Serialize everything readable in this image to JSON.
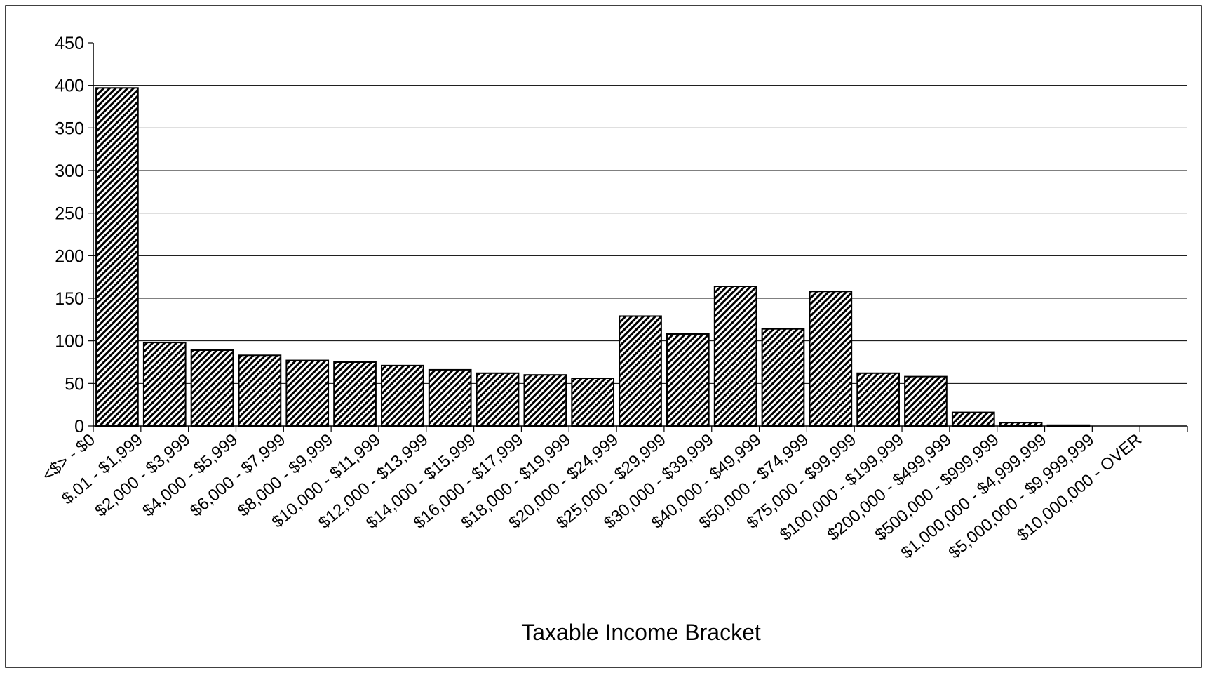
{
  "chart_data": {
    "type": "bar",
    "title": "",
    "xlabel": "Taxable Income Bracket",
    "ylabel": "",
    "ylim": [
      0,
      450
    ],
    "yticks": [
      0,
      50,
      100,
      150,
      200,
      250,
      300,
      350,
      400,
      450
    ],
    "grid": "horizontal",
    "legend": "none",
    "bar_fill": "diagonal-hatch",
    "colors": {
      "bar_hatch": "#000000",
      "bar_background": "#ffffff",
      "gridline": "#000000",
      "frame": "#000000"
    },
    "categories": [
      "<$> - $0",
      "$.01 - $1,999",
      "$2,000 - $3,999",
      "$4,000 - $5,999",
      "$6,000 - $7,999",
      "$8,000 - $9,999",
      "$10,000 - $11,999",
      "$12,000 - $13,999",
      "$14,000 - $15,999",
      "$16,000 - $17,999",
      "$18,000 - $19,999",
      "$20,000 - $24,999",
      "$25,000 - $29,999",
      "$30,000 - $39,999",
      "$40,000 - $49,999",
      "$50,000 - $74,999",
      "$75,000 - $99,999",
      "$100,000 - $199,999",
      "$200,000 - $499,999",
      "$500,000 - $999,999",
      "$1,000,000 - $4,999,999",
      "$5,000,000 - $9,999,999",
      "$10,000,000 - OVER"
    ],
    "values": [
      397,
      98,
      89,
      83,
      77,
      75,
      71,
      66,
      62,
      60,
      56,
      129,
      108,
      164,
      114,
      158,
      62,
      58,
      16,
      4,
      1,
      0,
      0
    ]
  }
}
